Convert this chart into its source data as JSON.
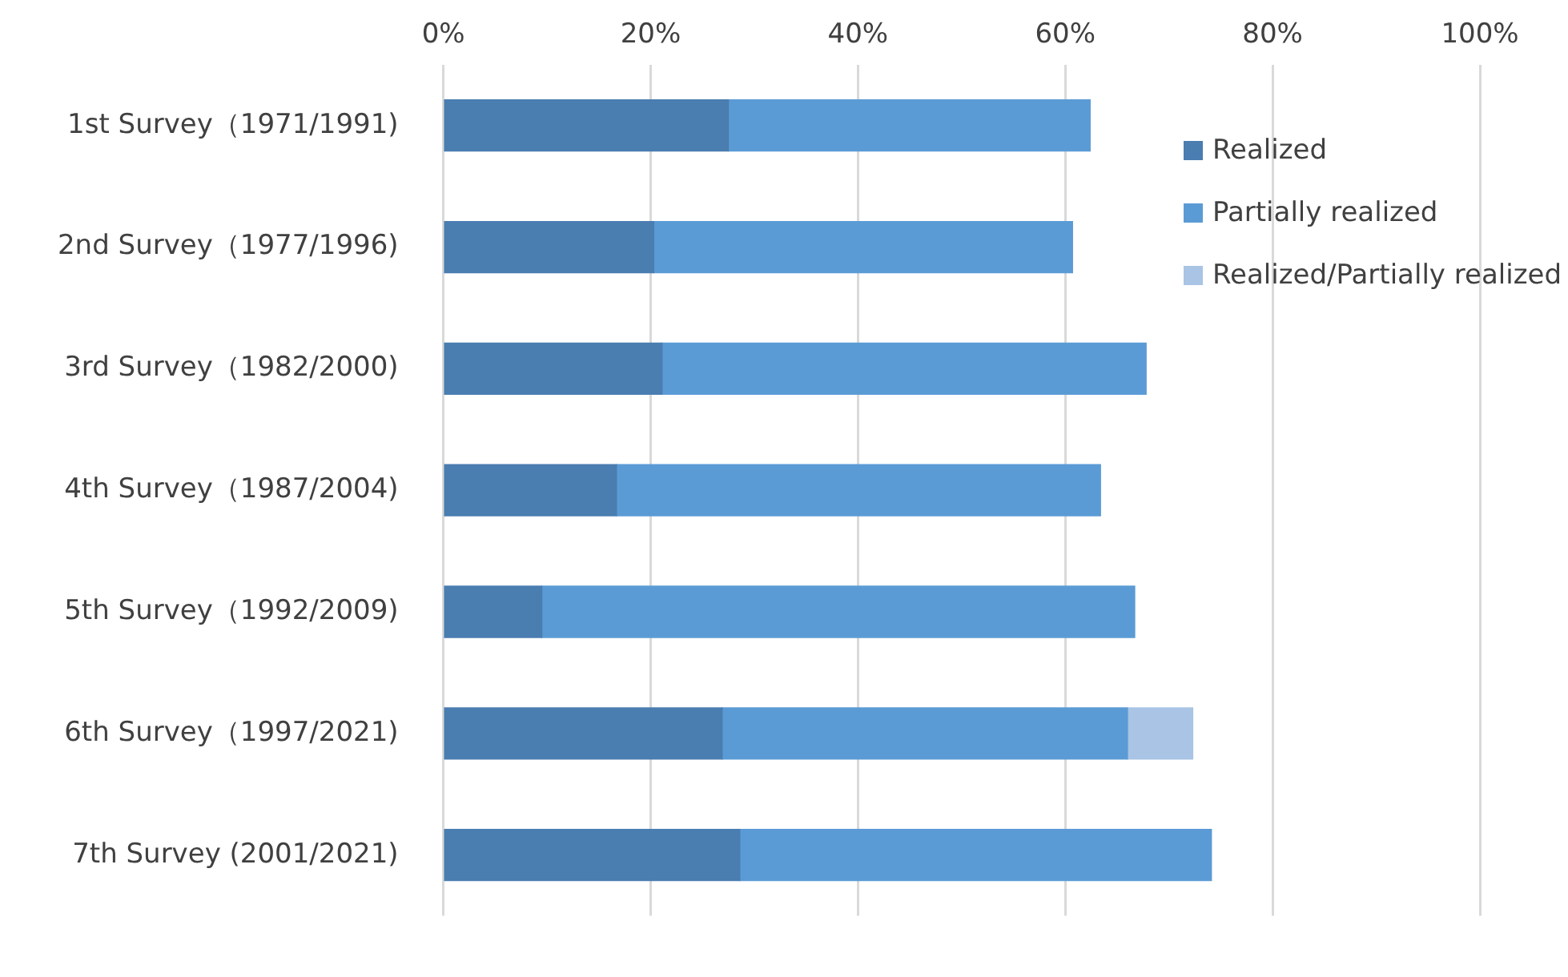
{
  "chart_data": {
    "type": "bar",
    "orientation": "horizontal",
    "stacked": true,
    "categories": [
      "1st Survey（1971/1991)",
      "2nd Survey（1977/1996)",
      "3rd Survey（1982/2000)",
      "4th Survey（1987/2004)",
      "5th Survey（1992/2009)",
      "6th Survey（1997/2021)",
      "7th Survey (2001/2021)"
    ],
    "series": [
      {
        "name": "Realized",
        "color": "#4a7db0",
        "values": [
          27.5,
          20.3,
          21.1,
          16.7,
          9.5,
          26.9,
          28.6
        ]
      },
      {
        "name": "Partially realized",
        "color": "#5b9bd5",
        "values": [
          34.9,
          40.4,
          46.7,
          46.7,
          57.2,
          39.1,
          45.5
        ]
      },
      {
        "name": "Realized/Partially realized",
        "color": "#a9c4e4",
        "values": [
          null,
          null,
          null,
          null,
          null,
          6.3,
          null
        ]
      }
    ],
    "xlim": [
      0,
      100
    ],
    "xticks": [
      {
        "value": 0,
        "label": "0%"
      },
      {
        "value": 20,
        "label": "20%"
      },
      {
        "value": 40,
        "label": "40%"
      },
      {
        "value": 60,
        "label": "60%"
      },
      {
        "value": 80,
        "label": "80%"
      },
      {
        "value": 100,
        "label": "100%"
      }
    ],
    "grid": "x",
    "legend": "top right"
  }
}
